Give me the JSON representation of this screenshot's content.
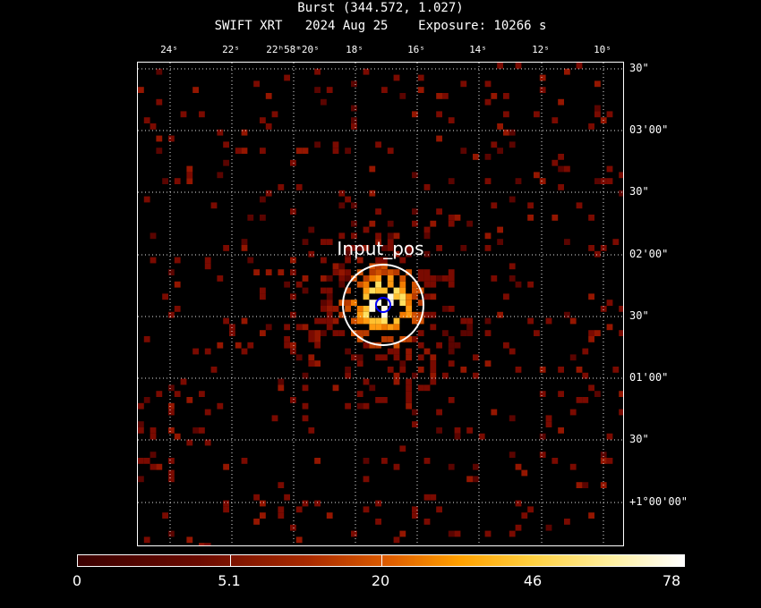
{
  "header": {
    "title": "Burst (344.572, 1.027)",
    "subtitle": "SWIFT XRT   2024 Aug 25    Exposure: 10266 s"
  },
  "axes": {
    "ra_ticks": [
      "24ˢ",
      "22ˢ",
      "22ʰ58ᵐ20ˢ",
      "18ˢ",
      "16ˢ",
      "14ˢ",
      "12ˢ",
      "10ˢ"
    ],
    "dec_ticks": [
      "30\"",
      "03'00\"",
      "30\"",
      "02'00\"",
      "30\"",
      "01'00\"",
      "30\"",
      "+1°00'00\""
    ]
  },
  "image": {
    "source_label": "Input_pos",
    "source_region_color": "#ffffff",
    "position_marker_color": "#0000ff",
    "colormap": "heat"
  },
  "colorbar": {
    "labels": [
      "0",
      "5.1",
      "20",
      "46",
      "78"
    ]
  }
}
